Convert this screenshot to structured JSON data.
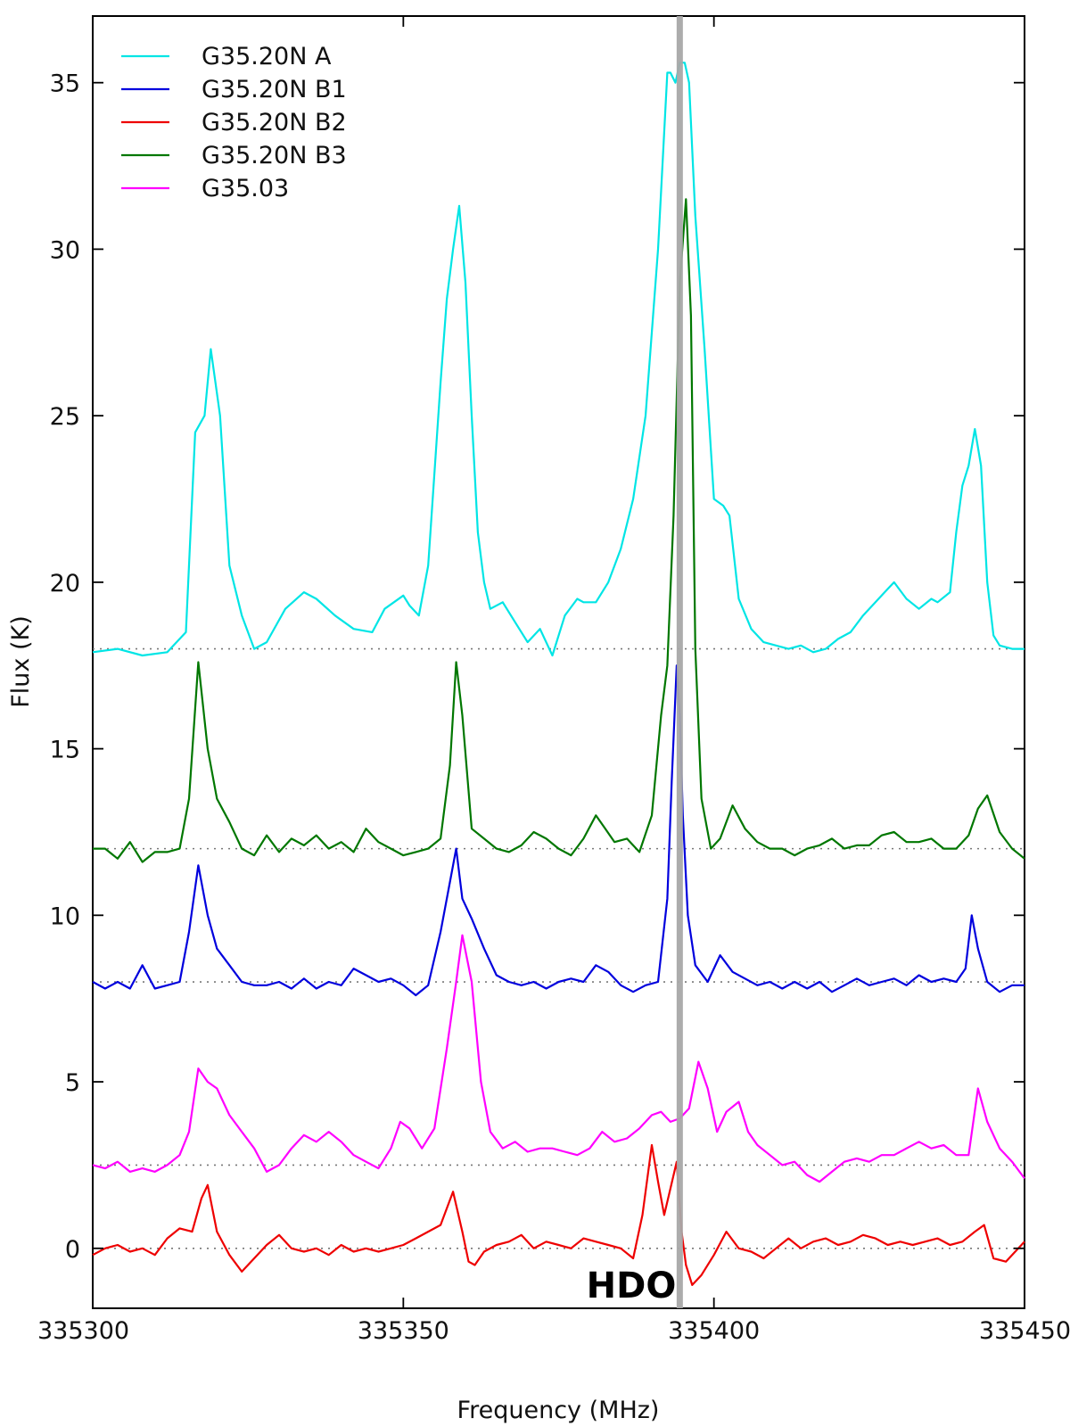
{
  "chart_data": {
    "type": "line",
    "xlabel": "Frequency (MHz)",
    "ylabel": "Flux (K)",
    "xlim": [
      335300,
      335450
    ],
    "ylim": [
      -1.8,
      37
    ],
    "xticks": [
      335300,
      335350,
      335400,
      335450
    ],
    "yticks": [
      0,
      5,
      10,
      15,
      20,
      25,
      30,
      35
    ],
    "grid": false,
    "legend_position": "top-left",
    "annotations": [
      {
        "text": "HDO",
        "x": 335394.5,
        "marker_color": "#a8a8a8"
      }
    ],
    "series": [
      {
        "name": "G35.20N A",
        "color": "#00e5e5",
        "baseline": 18,
        "x": [
          335300,
          335304,
          335308,
          335312,
          335315,
          335316.5,
          335318,
          335319,
          335320.5,
          335322,
          335324,
          335326,
          335328,
          335331,
          335334,
          335336,
          335339,
          335342,
          335345,
          335347,
          335350,
          335351,
          335352.5,
          335354,
          335356,
          335357,
          335358,
          335359,
          335360,
          335361,
          335362,
          335363,
          335364,
          335366,
          335368,
          335370,
          335372,
          335374,
          335376,
          335378,
          335379,
          335381,
          335383,
          335385,
          335387,
          335389,
          335391,
          335392.5,
          335393,
          335393.8,
          335394.5,
          335395.3,
          335396,
          335397,
          335398.5,
          335400,
          335401.5,
          335402.5,
          335404,
          335406,
          335408,
          335410,
          335412,
          335414,
          335416,
          335418,
          335420,
          335422,
          335424,
          335426,
          335428,
          335429,
          335431,
          335433,
          335435,
          335436,
          335438,
          335439,
          335440,
          335441,
          335442,
          335443,
          335444,
          335445,
          335446,
          335448,
          335450
        ],
        "y": [
          17.9,
          18.0,
          17.8,
          17.9,
          18.5,
          24.5,
          25.0,
          27.0,
          25.0,
          20.5,
          19.0,
          18.0,
          18.2,
          19.2,
          19.7,
          19.5,
          19.0,
          18.6,
          18.5,
          19.2,
          19.6,
          19.3,
          19.0,
          20.5,
          26.0,
          28.5,
          30.0,
          31.3,
          29.0,
          25.0,
          21.5,
          20.0,
          19.2,
          19.4,
          18.8,
          18.2,
          18.6,
          17.8,
          19.0,
          19.5,
          19.4,
          19.4,
          20.0,
          21.0,
          22.5,
          25.0,
          30.0,
          35.3,
          35.3,
          35.0,
          35.6,
          35.6,
          35.0,
          31.0,
          27.0,
          22.5,
          22.3,
          22.0,
          19.5,
          18.6,
          18.2,
          18.1,
          18.0,
          18.1,
          17.9,
          18.0,
          18.3,
          18.5,
          19.0,
          19.4,
          19.8,
          20.0,
          19.5,
          19.2,
          19.5,
          19.4,
          19.7,
          21.5,
          22.9,
          23.5,
          24.6,
          23.5,
          20.0,
          18.4,
          18.1,
          18.0,
          18.0
        ]
      },
      {
        "name": "G35.20N B1",
        "color": "#0000dd",
        "baseline": 8,
        "x": [
          335300,
          335302,
          335304,
          335306,
          335308,
          335310,
          335312,
          335314,
          335315.5,
          335317,
          335318.5,
          335320,
          335322,
          335324,
          335326,
          335328,
          335330,
          335332,
          335334,
          335336,
          335338,
          335340,
          335342,
          335344,
          335346,
          335348,
          335350,
          335352,
          335354,
          335356,
          335357.5,
          335358.5,
          335359.5,
          335361,
          335363,
          335365,
          335367,
          335369,
          335371,
          335373,
          335375,
          335377,
          335379,
          335381,
          335383,
          335385,
          335387,
          335389,
          335391,
          335392.5,
          335393.2,
          335394,
          335394.5,
          335395,
          335395.8,
          335397,
          335399,
          335401,
          335403,
          335405,
          335407,
          335409,
          335411,
          335413,
          335415,
          335417,
          335419,
          335421,
          335423,
          335425,
          335427,
          335429,
          335431,
          335433,
          335435,
          335437,
          335439,
          335440.5,
          335441.5,
          335442.5,
          335444,
          335446,
          335448,
          335450
        ],
        "y": [
          8.0,
          7.8,
          8.0,
          7.8,
          8.5,
          7.8,
          7.9,
          8.0,
          9.5,
          11.5,
          10.0,
          9.0,
          8.5,
          8.0,
          7.9,
          7.9,
          8.0,
          7.8,
          8.1,
          7.8,
          8.0,
          7.9,
          8.4,
          8.2,
          8.0,
          8.1,
          7.9,
          7.6,
          7.9,
          9.5,
          11.0,
          12.0,
          10.5,
          9.9,
          9.0,
          8.2,
          8.0,
          7.9,
          8.0,
          7.8,
          8.0,
          8.1,
          8.0,
          8.5,
          8.3,
          7.9,
          7.7,
          7.9,
          8.0,
          10.5,
          14.0,
          17.5,
          16.0,
          13.0,
          10.0,
          8.5,
          8.0,
          8.8,
          8.3,
          8.1,
          7.9,
          8.0,
          7.8,
          8.0,
          7.8,
          8.0,
          7.7,
          7.9,
          8.1,
          7.9,
          8.0,
          8.1,
          7.9,
          8.2,
          8.0,
          8.1,
          8.0,
          8.4,
          10.0,
          9.0,
          8.0,
          7.7,
          7.9,
          7.9
        ]
      },
      {
        "name": "G35.20N B2",
        "color": "#ee0000",
        "baseline": 0,
        "x": [
          335300,
          335302,
          335304,
          335306,
          335308,
          335310,
          335312,
          335314,
          335316,
          335317.5,
          335318.5,
          335320,
          335322,
          335324,
          335326,
          335328,
          335330,
          335332,
          335334,
          335336,
          335338,
          335340,
          335342,
          335344,
          335346,
          335348,
          335350,
          335352,
          335354,
          335356,
          335358,
          335359.5,
          335360.5,
          335361.5,
          335363,
          335365,
          335367,
          335369,
          335371,
          335373,
          335375,
          335377,
          335379,
          335381,
          335383,
          335385,
          335387,
          335388.5,
          335390,
          335391,
          335392,
          335393,
          335394,
          335394.8,
          335395.5,
          335396.5,
          335398,
          335400,
          335402,
          335404,
          335406,
          335408,
          335410,
          335412,
          335414,
          335416,
          335418,
          335420,
          335422,
          335424,
          335426,
          335428,
          335430,
          335432,
          335434,
          335436,
          335438,
          335440,
          335442,
          335443.5,
          335445,
          335447,
          335450
        ],
        "y": [
          -0.2,
          0.0,
          0.1,
          -0.1,
          0.0,
          -0.2,
          0.3,
          0.6,
          0.5,
          1.5,
          1.9,
          0.5,
          -0.2,
          -0.7,
          -0.3,
          0.1,
          0.4,
          0.0,
          -0.1,
          0.0,
          -0.2,
          0.1,
          -0.1,
          0.0,
          -0.1,
          0.0,
          0.1,
          0.3,
          0.5,
          0.7,
          1.7,
          0.5,
          -0.4,
          -0.5,
          -0.1,
          0.1,
          0.2,
          0.4,
          0.0,
          0.2,
          0.1,
          0.0,
          0.3,
          0.2,
          0.1,
          0.0,
          -0.3,
          1.0,
          3.1,
          2.0,
          1.0,
          1.8,
          2.6,
          0.5,
          -0.5,
          -1.1,
          -0.8,
          -0.2,
          0.5,
          0.0,
          -0.1,
          -0.3,
          0.0,
          0.3,
          0.0,
          0.2,
          0.3,
          0.1,
          0.2,
          0.4,
          0.3,
          0.1,
          0.2,
          0.1,
          0.2,
          0.3,
          0.1,
          0.2,
          0.5,
          0.7,
          -0.3,
          -0.4,
          0.2
        ]
      },
      {
        "name": "G35.20N B3",
        "color": "#007700",
        "baseline": 12,
        "x": [
          335300,
          335302,
          335304,
          335306,
          335308,
          335310,
          335312,
          335314,
          335315.5,
          335317,
          335318.5,
          335320,
          335322,
          335324,
          335326,
          335328,
          335330,
          335332,
          335334,
          335336,
          335338,
          335340,
          335342,
          335344,
          335346,
          335348,
          335350,
          335352,
          335354,
          335356,
          335357.5,
          335358.5,
          335359.5,
          335361,
          335363,
          335365,
          335367,
          335369,
          335371,
          335373,
          335375,
          335377,
          335379,
          335381,
          335382.5,
          335384,
          335386,
          335388,
          335390,
          335391.5,
          335392.5,
          335393.5,
          335394.5,
          335395.5,
          335396.3,
          335397,
          335398,
          335399.5,
          335401,
          335403,
          335405,
          335407,
          335409,
          335411,
          335413,
          335415,
          335417,
          335419,
          335421,
          335423,
          335425,
          335427,
          335429,
          335431,
          335433,
          335435,
          335437,
          335439,
          335441,
          335442.5,
          335444,
          335446,
          335448,
          335450
        ],
        "y": [
          12.0,
          12.0,
          11.7,
          12.2,
          11.6,
          11.9,
          11.9,
          12.0,
          13.5,
          17.6,
          15.0,
          13.5,
          12.8,
          12.0,
          11.8,
          12.4,
          11.9,
          12.3,
          12.1,
          12.4,
          12.0,
          12.2,
          11.9,
          12.6,
          12.2,
          12.0,
          11.8,
          11.9,
          12.0,
          12.3,
          14.5,
          17.6,
          16.0,
          12.6,
          12.3,
          12.0,
          11.9,
          12.1,
          12.5,
          12.3,
          12.0,
          11.8,
          12.3,
          13.0,
          12.6,
          12.2,
          12.3,
          11.9,
          13.0,
          16.0,
          17.5,
          22.0,
          29.0,
          31.5,
          28.0,
          18.0,
          13.5,
          12.0,
          12.3,
          13.3,
          12.6,
          12.2,
          12.0,
          12.0,
          11.8,
          12.0,
          12.1,
          12.3,
          12.0,
          12.1,
          12.1,
          12.4,
          12.5,
          12.2,
          12.2,
          12.3,
          12.0,
          12.0,
          12.4,
          13.2,
          13.6,
          12.5,
          12.0,
          11.7
        ]
      },
      {
        "name": "G35.03",
        "color": "#ff00ff",
        "baseline": 2.5,
        "x": [
          335300,
          335302,
          335304,
          335306,
          335308,
          335310,
          335312,
          335314,
          335315.5,
          335317,
          335318.5,
          335320,
          335322,
          335324,
          335326,
          335328,
          335330,
          335332,
          335334,
          335336,
          335338,
          335340,
          335342,
          335344,
          335346,
          335348,
          335349.5,
          335351,
          335353,
          335355,
          335357,
          335358.5,
          335359.5,
          335361,
          335362.5,
          335364,
          335366,
          335368,
          335370,
          335372,
          335374,
          335376,
          335378,
          335380,
          335382,
          335384,
          335386,
          335388,
          335390,
          335391.5,
          335393,
          335394.5,
          335396,
          335397.5,
          335399,
          335400.5,
          335402,
          335404,
          335405.5,
          335407,
          335409,
          335411,
          335413,
          335415,
          335417,
          335419,
          335421,
          335423,
          335425,
          335427,
          335429,
          335431,
          335433,
          335435,
          335437,
          335439,
          335441,
          335442.5,
          335444,
          335446,
          335448,
          335450
        ],
        "y": [
          2.5,
          2.4,
          2.6,
          2.3,
          2.4,
          2.3,
          2.5,
          2.8,
          3.5,
          5.4,
          5.0,
          4.8,
          4.0,
          3.5,
          3.0,
          2.3,
          2.5,
          3.0,
          3.4,
          3.2,
          3.5,
          3.2,
          2.8,
          2.6,
          2.4,
          3.0,
          3.8,
          3.6,
          3.0,
          3.6,
          6.0,
          8.0,
          9.4,
          8.0,
          5.0,
          3.5,
          3.0,
          3.2,
          2.9,
          3.0,
          3.0,
          2.9,
          2.8,
          3.0,
          3.5,
          3.2,
          3.3,
          3.6,
          4.0,
          4.1,
          3.8,
          3.9,
          4.2,
          5.6,
          4.8,
          3.5,
          4.1,
          4.4,
          3.5,
          3.1,
          2.8,
          2.5,
          2.6,
          2.2,
          2.0,
          2.3,
          2.6,
          2.7,
          2.6,
          2.8,
          2.8,
          3.0,
          3.2,
          3.0,
          3.1,
          2.8,
          2.8,
          4.8,
          3.8,
          3.0,
          2.6,
          2.1
        ]
      }
    ]
  }
}
